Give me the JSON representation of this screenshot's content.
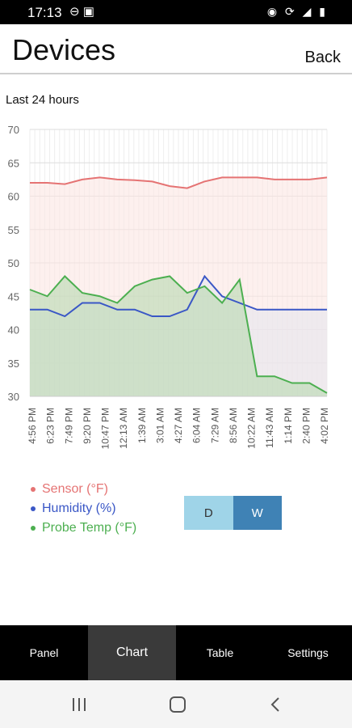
{
  "status_bar": {
    "time": "17:13",
    "left_icons": "⊖ ▣",
    "right_icons": "wifi-icon sync-icon signal-icon battery-icon"
  },
  "header": {
    "title": "Devices",
    "back_label": "Back"
  },
  "chart_header": {
    "range_label": "Last 24 hours"
  },
  "chart_data": {
    "type": "area",
    "title": "",
    "xlabel": "",
    "ylabel": "",
    "ylim": [
      30,
      70
    ],
    "yticks": [
      30,
      35,
      40,
      45,
      50,
      55,
      60,
      65,
      70
    ],
    "x_tick_labels": [
      "4:56 PM",
      "6:23 PM",
      "7:49 PM",
      "9:20 PM",
      "10:47 PM",
      "12:13 AM",
      "1:39 AM",
      "3:01 AM",
      "4:27 AM",
      "6:04 AM",
      "7:29 AM",
      "8:56 AM",
      "10:22 AM",
      "11:43 AM",
      "1:14 PM",
      "2:40 PM",
      "4:02 PM"
    ],
    "grid": true,
    "series": [
      {
        "name": "Sensor (°F)",
        "color": "#e57373",
        "fill": "#fbe6e2",
        "values": [
          62,
          62,
          61.8,
          62.5,
          62.8,
          62.5,
          62.4,
          62.2,
          61.5,
          61.2,
          62.2,
          62.8,
          62.8,
          62.8,
          62.5,
          62.5,
          62.5,
          62.8
        ]
      },
      {
        "name": "Humidity (%)",
        "color": "#3a57c6",
        "fill": "#e6e6ee",
        "values": [
          43,
          43,
          42,
          44,
          44,
          43,
          43,
          42,
          42,
          43,
          48,
          45,
          44,
          43,
          43,
          43,
          43,
          43
        ]
      },
      {
        "name": "Probe Temp (°F)",
        "color": "#4caf50",
        "fill": "#b8d9b0",
        "values": [
          46,
          45,
          48,
          45.5,
          45,
          44,
          46.5,
          47.5,
          48,
          45.5,
          46.5,
          44,
          47.5,
          33,
          33,
          32,
          32,
          30.5
        ]
      }
    ]
  },
  "toggle": {
    "d_label": "D",
    "w_label": "W",
    "selected": "W"
  },
  "tabs": [
    {
      "label": "Panel",
      "active": false
    },
    {
      "label": "Chart",
      "active": true
    },
    {
      "label": "Table",
      "active": false
    },
    {
      "label": "Settings",
      "active": false
    }
  ],
  "colors": {
    "toggle_inactive": "#9fd4e8",
    "toggle_active": "#3f82b5",
    "tabbar": "#000000"
  }
}
